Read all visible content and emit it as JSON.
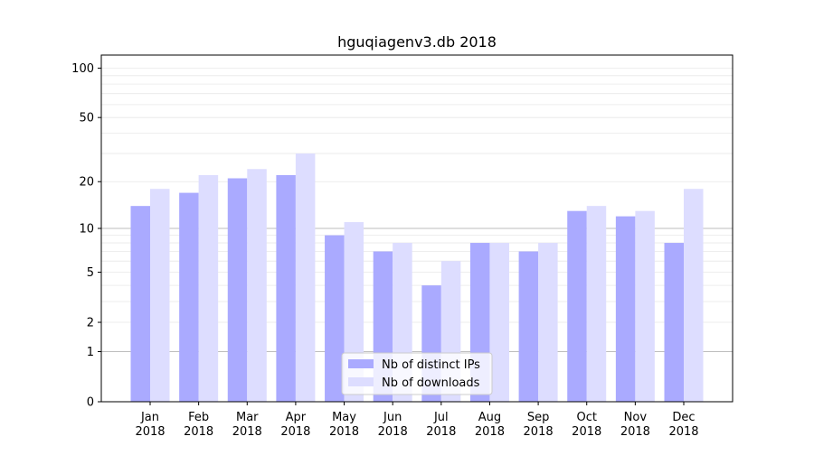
{
  "chart_data": {
    "type": "bar",
    "title": "hguqiagenv3.db 2018",
    "y_scale": "log1p",
    "ylim": [
      0,
      120
    ],
    "y_ticks": [
      0,
      1,
      2,
      5,
      10,
      20,
      50,
      100
    ],
    "major_grid_lines": [
      1,
      10
    ],
    "grid": true,
    "legend_position": "bottom-center",
    "categories": [
      [
        "Jan",
        "2018"
      ],
      [
        "Feb",
        "2018"
      ],
      [
        "Mar",
        "2018"
      ],
      [
        "Apr",
        "2018"
      ],
      [
        "May",
        "2018"
      ],
      [
        "Jun",
        "2018"
      ],
      [
        "Jul",
        "2018"
      ],
      [
        "Aug",
        "2018"
      ],
      [
        "Sep",
        "2018"
      ],
      [
        "Oct",
        "2018"
      ],
      [
        "Nov",
        "2018"
      ],
      [
        "Dec",
        "2018"
      ]
    ],
    "series": [
      {
        "name": "Nb of distinct IPs",
        "color": "#aaaaff",
        "values": [
          14,
          17,
          21,
          22,
          9,
          7,
          4,
          8,
          7,
          13,
          12,
          8
        ]
      },
      {
        "name": "Nb of downloads",
        "color": "#ddddff",
        "values": [
          18,
          22,
          24,
          30,
          11,
          8,
          6,
          8,
          8,
          14,
          13,
          18
        ]
      }
    ]
  }
}
